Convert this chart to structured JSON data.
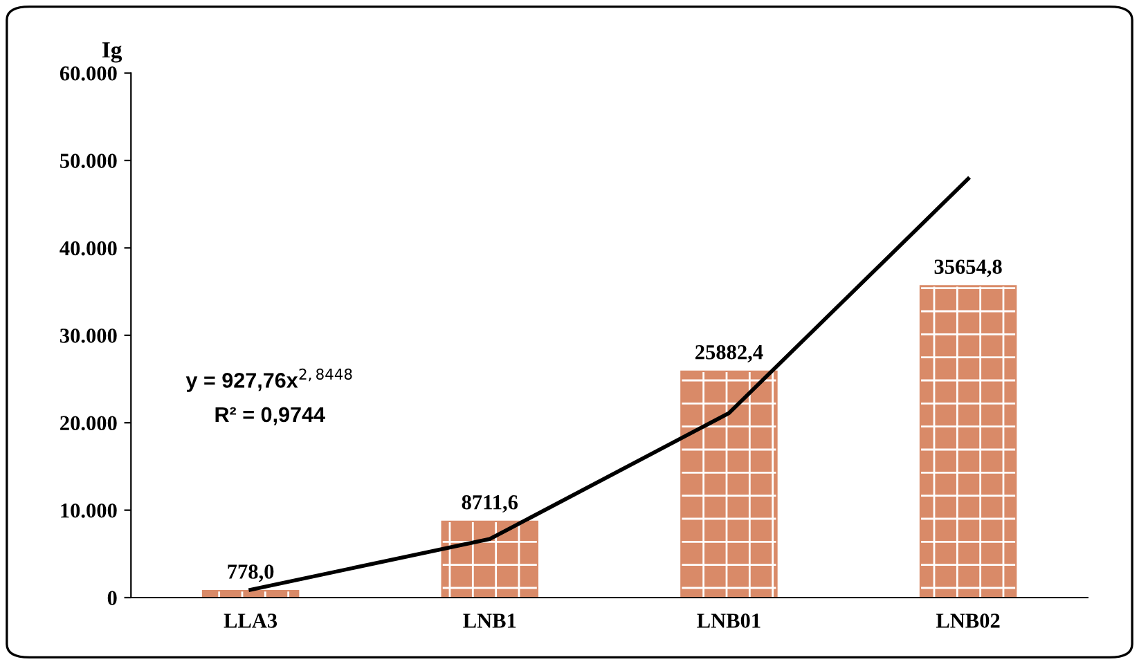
{
  "chart_data": {
    "type": "bar",
    "ylabel": "Ig",
    "categories": [
      "LLA3",
      "LNB1",
      "LNB01",
      "LNB02"
    ],
    "series": [
      {
        "color": "#d98a68",
        "values": [
          778.0,
          8711.6,
          25882.4,
          35654.8
        ],
        "value_labels": [
          "778,0",
          "8711,6",
          "25882,4",
          "35654,8"
        ]
      },
      {
        "type": "line",
        "color": "#000000",
        "values": [
          900,
          6700,
          21100,
          47900
        ]
      }
    ],
    "ylim": [
      0,
      60000
    ],
    "yticks": [
      {
        "value": 0,
        "label": "0"
      },
      {
        "value": 10000,
        "label": "10.000"
      },
      {
        "value": 20000,
        "label": "20.000"
      },
      {
        "value": 30000,
        "label": "30.000"
      },
      {
        "value": 40000,
        "label": "40.000"
      },
      {
        "value": 50000,
        "label": "50.000"
      },
      {
        "value": 60000,
        "label": "60.000"
      }
    ],
    "annotations": [
      "y = 927,76x$^{2,8448}$",
      "R² = 0,9744"
    ],
    "grid": false,
    "legend": false
  }
}
